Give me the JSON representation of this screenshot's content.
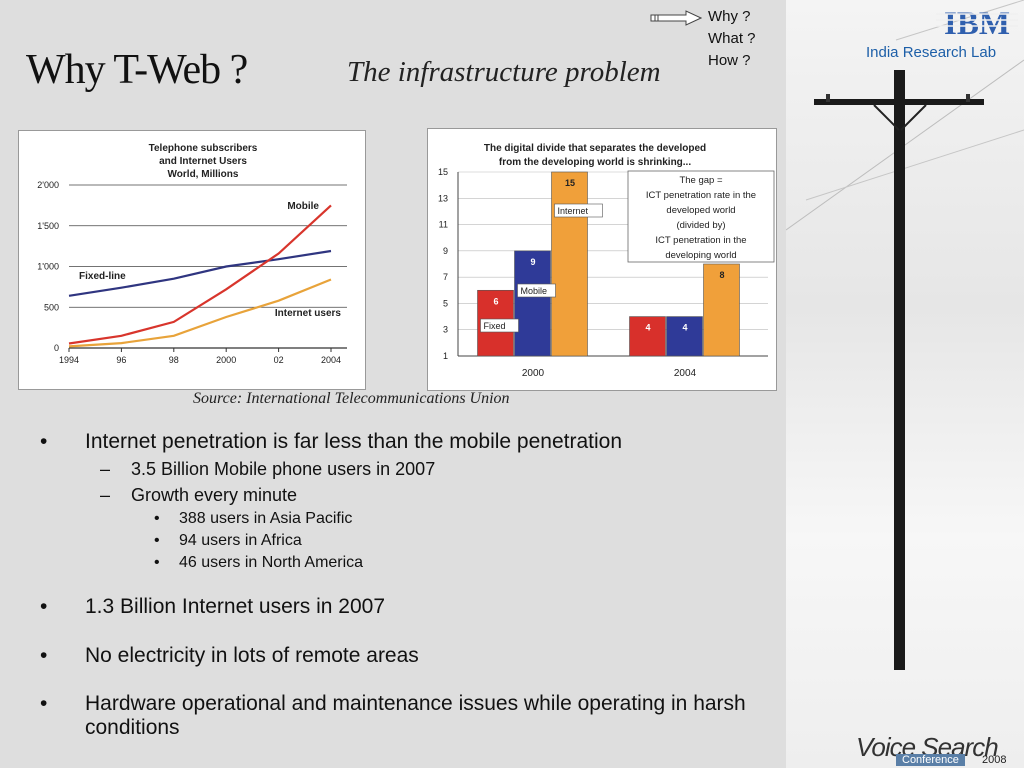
{
  "slide": {
    "title": "Why T-Web ?",
    "subtitle": "The infrastructure problem",
    "nav": [
      "Why ?",
      "What ?",
      "How ?"
    ],
    "source": "Source: International Telecommunications Union"
  },
  "bullets": [
    {
      "level": 1,
      "text": "Internet penetration is far less than the mobile penetration"
    },
    {
      "level": 2,
      "text": "3.5 Billion Mobile phone users in 2007"
    },
    {
      "level": 2,
      "text": "Growth every minute"
    },
    {
      "level": 3,
      "text": "388 users in Asia Pacific"
    },
    {
      "level": 3,
      "text": "94 users in Africa"
    },
    {
      "level": 3,
      "text": "46 users in North America"
    },
    {
      "level": 1,
      "text": "1.3 Billion Internet users in 2007"
    },
    {
      "level": 1,
      "text": "No electricity in lots of remote areas"
    },
    {
      "level": 1,
      "text": "Hardware operational and maintenance issues while operating in harsh conditions"
    }
  ],
  "branding": {
    "logo": "IBM",
    "lab": "India  Research  Lab",
    "event": "Voice Search",
    "event_sub": "Conference",
    "event_year": "2008"
  },
  "chart_data": [
    {
      "type": "line",
      "title": "Telephone subscribers and Internet Users World, Millions",
      "x": [
        1994,
        1996,
        1998,
        2000,
        2002,
        2004
      ],
      "xtick_labels": [
        "1994",
        "96",
        "98",
        "2000",
        "02",
        "2004"
      ],
      "ytick_labels": [
        "0",
        "500",
        "1'000",
        "1'500",
        "2'000"
      ],
      "ylim": [
        0,
        2000
      ],
      "grid": true,
      "series": [
        {
          "name": "Fixed-line",
          "color": "#2f3580",
          "values": [
            640,
            740,
            850,
            1000,
            1090,
            1190
          ]
        },
        {
          "name": "Mobile",
          "color": "#d8352c",
          "values": [
            55,
            150,
            320,
            720,
            1160,
            1750
          ]
        },
        {
          "name": "Internet users",
          "color": "#e8a33a",
          "values": [
            20,
            60,
            150,
            380,
            580,
            840
          ]
        }
      ]
    },
    {
      "type": "bar",
      "title": "The digital divide that separates the developed from the developing world is shrinking...",
      "categories": [
        "2000",
        "2004"
      ],
      "ylim": [
        1,
        15
      ],
      "ytick_labels": [
        "1",
        "3",
        "5",
        "7",
        "9",
        "11",
        "13",
        "15"
      ],
      "grid": true,
      "series": [
        {
          "name": "Fixed",
          "color": "#d8302b",
          "values": [
            6,
            4
          ]
        },
        {
          "name": "Mobile",
          "color": "#2f3a98",
          "values": [
            9,
            4
          ]
        },
        {
          "name": "Internet",
          "color": "#f0a03a",
          "values": [
            15,
            8
          ]
        }
      ],
      "annotation": [
        "The gap =",
        "ICT penetration rate in the",
        "developed world",
        "(divided by)",
        "ICT penetration in the",
        "developing world"
      ]
    }
  ]
}
